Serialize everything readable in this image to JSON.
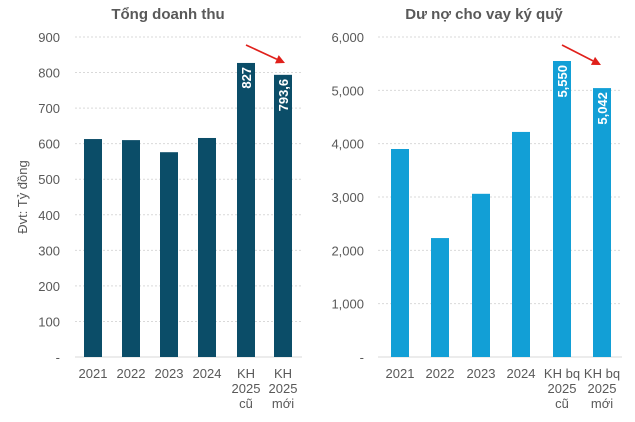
{
  "chart_data": [
    {
      "type": "bar",
      "title": "Tổng doanh thu",
      "ylabel": "Đvt: Tỷ đồng",
      "xlabel": "",
      "categories": [
        [
          "2021"
        ],
        [
          "2022"
        ],
        [
          "2023"
        ],
        [
          "2024"
        ],
        [
          "KH",
          "2025",
          "cũ"
        ],
        [
          "KH",
          "2025",
          "mới"
        ]
      ],
      "values": [
        613,
        610,
        576,
        616,
        827,
        793.6
      ],
      "data_labels": [
        "",
        "",
        "",
        "",
        "827",
        "793,6"
      ],
      "ylim": [
        0,
        900
      ],
      "yticks": [
        "-",
        "100",
        "200",
        "300",
        "400",
        "500",
        "600",
        "700",
        "800",
        "900"
      ],
      "grid": true,
      "color": "#0b4d68",
      "annotation": "red arrow pointing down from KH 2025 cũ to KH 2025 mới",
      "annotation_color": "#e0201b"
    },
    {
      "type": "bar",
      "title": "Dư nợ cho vay ký quỹ",
      "ylabel": "",
      "xlabel": "",
      "categories": [
        [
          "2021"
        ],
        [
          "2022"
        ],
        [
          "2023"
        ],
        [
          "2024"
        ],
        [
          "KH bq",
          "2025",
          "cũ"
        ],
        [
          "KH bq",
          "2025",
          "mới"
        ]
      ],
      "values": [
        3900,
        2230,
        3060,
        4220,
        5550,
        5042
      ],
      "data_labels": [
        "",
        "",
        "",
        "",
        "5,550",
        "5,042"
      ],
      "ylim": [
        0,
        6000
      ],
      "yticks": [
        "-",
        "1,000",
        "2,000",
        "3,000",
        "4,000",
        "5,000",
        "6,000"
      ],
      "grid": true,
      "color": "#129fd6",
      "annotation": "red arrow pointing down from KH bq 2025 cũ to KH bq 2025 mới",
      "annotation_color": "#e0201b"
    }
  ]
}
